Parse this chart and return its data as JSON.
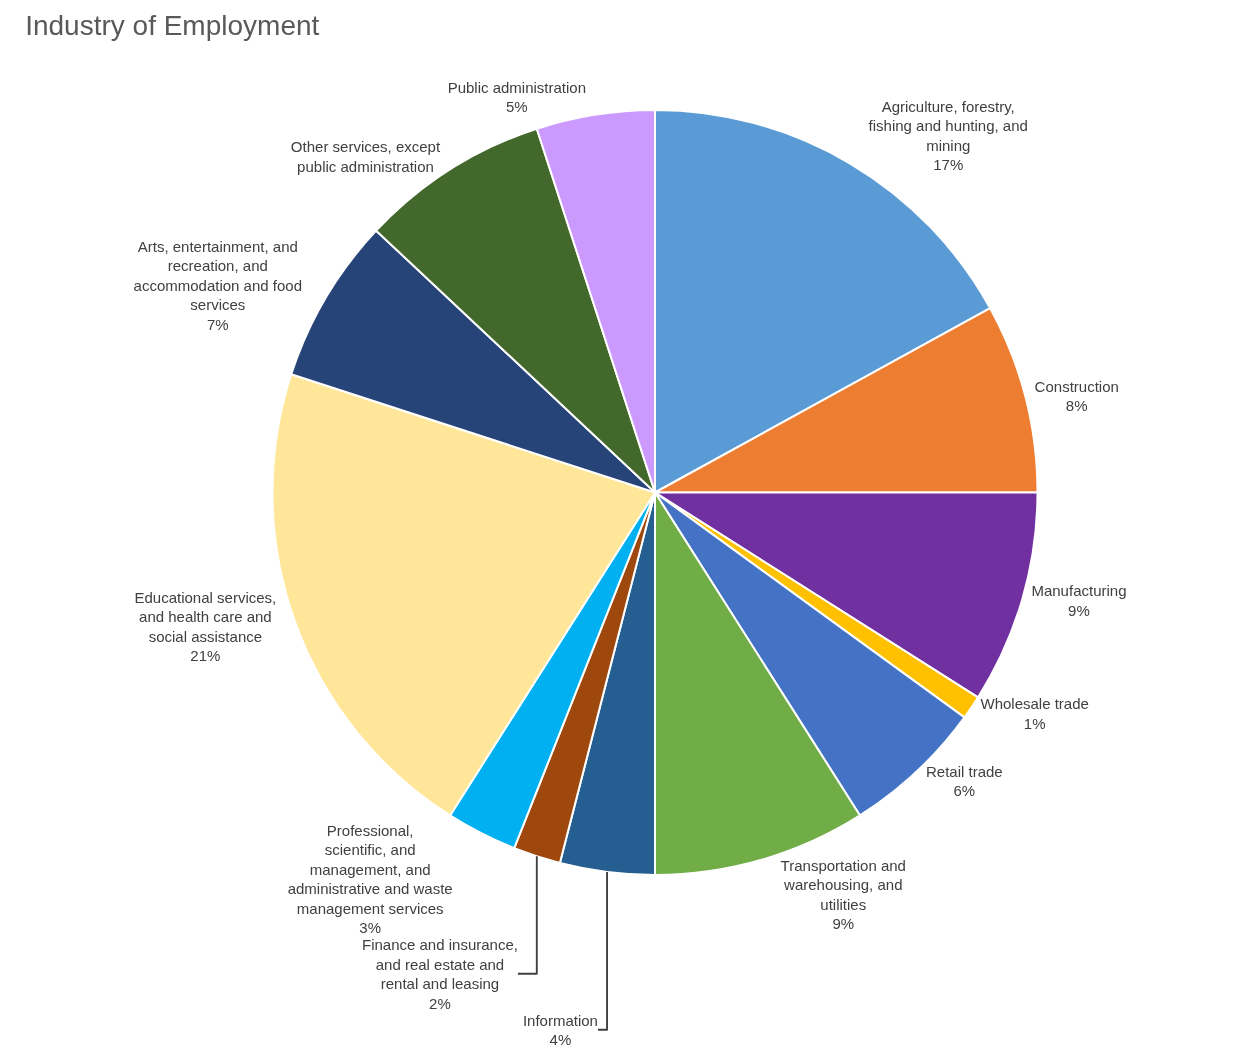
{
  "chart_data": {
    "type": "pie",
    "title": "Industry of Employment",
    "categories": [
      "Agriculture, forestry, fishing and hunting, and mining",
      "Construction",
      "Manufacturing",
      "Wholesale trade",
      "Retail trade",
      "Transportation and warehousing, and utilities",
      "Information",
      "Finance and insurance, and real estate and rental and leasing",
      "Professional, scientific, and management, and administrative and waste management services",
      "Educational services, and health care and social assistance",
      "Arts, entertainment, and recreation, and accommodation and food services",
      "Other services, except public administration",
      "Public administration"
    ],
    "values": [
      17,
      8,
      9,
      1,
      6,
      9,
      4,
      2,
      3,
      21,
      7,
      8,
      5
    ],
    "value_labels": [
      "17%",
      "8%",
      "9%",
      "1%",
      "6%",
      "9%",
      "4%",
      "2%",
      "3%",
      "21%",
      "7%",
      null,
      "5%"
    ],
    "colors": [
      "#5b9bd5",
      "#ed7d31",
      "#7030a0",
      "#ffc000",
      "#4472c4",
      "#70ad47",
      "#255e91",
      "#9e480e",
      "#00b0f0",
      "#ffe699",
      "#264478",
      "#43682b",
      "#cc99ff"
    ],
    "legend": false
  }
}
